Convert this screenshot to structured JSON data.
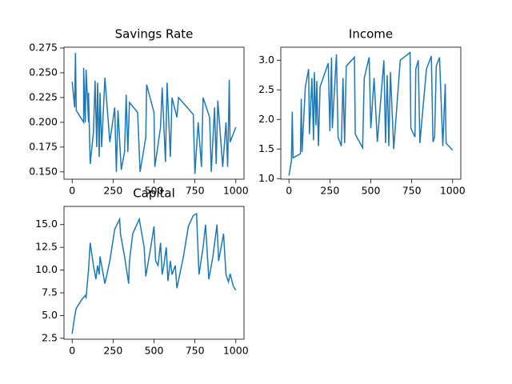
{
  "chart_data": [
    {
      "type": "line",
      "title": "Savings Rate",
      "color": "#1f77b4",
      "x": [
        0,
        15,
        20,
        25,
        70,
        70,
        80,
        85,
        100,
        100,
        110,
        130,
        140,
        150,
        155,
        165,
        170,
        180,
        190,
        200,
        230,
        260,
        270,
        280,
        300,
        320,
        330,
        340,
        350,
        400,
        415,
        450,
        455,
        500,
        505,
        540,
        550,
        570,
        580,
        600,
        610,
        640,
        650,
        740,
        750,
        770,
        790,
        800,
        840,
        850,
        870,
        880,
        890,
        920,
        940,
        950,
        960,
        965,
        1000
      ],
      "values": [
        0.241,
        0.215,
        0.27,
        0.212,
        0.2,
        0.255,
        0.2,
        0.253,
        0.2,
        0.23,
        0.158,
        0.19,
        0.242,
        0.175,
        0.24,
        0.165,
        0.23,
        0.175,
        0.21,
        0.245,
        0.18,
        0.215,
        0.15,
        0.212,
        0.152,
        0.17,
        0.228,
        0.17,
        0.22,
        0.21,
        0.15,
        0.185,
        0.238,
        0.21,
        0.155,
        0.195,
        0.235,
        0.16,
        0.24,
        0.165,
        0.225,
        0.205,
        0.225,
        0.208,
        0.148,
        0.2,
        0.155,
        0.225,
        0.205,
        0.15,
        0.215,
        0.158,
        0.222,
        0.155,
        0.2,
        0.155,
        0.243,
        0.18,
        0.195
      ],
      "xlim": [
        -50,
        1050
      ],
      "ylim": [
        0.1426,
        0.2758
      ],
      "xticks": [
        0,
        250,
        500,
        750,
        1000
      ],
      "yticks": [
        {
          "value": 0.15,
          "label": "0.150"
        },
        {
          "value": 0.175,
          "label": "0.175"
        },
        {
          "value": 0.2,
          "label": "0.200"
        },
        {
          "value": 0.225,
          "label": "0.225"
        },
        {
          "value": 0.25,
          "label": "0.250"
        },
        {
          "value": 0.275,
          "label": "0.275"
        }
      ]
    },
    {
      "type": "line",
      "title": "Income",
      "color": "#1f77b4",
      "x": [
        0,
        15,
        20,
        25,
        70,
        75,
        80,
        100,
        120,
        125,
        140,
        150,
        155,
        165,
        170,
        180,
        190,
        240,
        250,
        260,
        265,
        290,
        300,
        320,
        330,
        340,
        350,
        400,
        405,
        450,
        460,
        490,
        500,
        520,
        540,
        580,
        590,
        600,
        610,
        620,
        640,
        680,
        740,
        745,
        770,
        775,
        790,
        800,
        840,
        870,
        880,
        890,
        900,
        920,
        940,
        955,
        960,
        1000
      ],
      "values": [
        1.05,
        1.3,
        2.13,
        1.35,
        1.42,
        2.35,
        1.45,
        2.55,
        2.85,
        1.75,
        2.7,
        1.65,
        2.8,
        1.9,
        2.65,
        1.55,
        2.55,
        2.95,
        1.8,
        3.05,
        1.85,
        3.1,
        1.7,
        1.55,
        2.7,
        1.6,
        2.9,
        3.05,
        1.75,
        1.52,
        2.7,
        3.05,
        1.85,
        2.7,
        1.62,
        3.0,
        1.6,
        2.75,
        1.55,
        2.8,
        1.5,
        3.0,
        3.13,
        1.85,
        1.7,
        2.85,
        3.0,
        1.6,
        2.85,
        3.07,
        1.62,
        1.7,
        2.9,
        3.05,
        1.55,
        2.6,
        1.6,
        1.48
      ],
      "xlim": [
        -50,
        1050
      ],
      "ylim": [
        0.99,
        3.22
      ],
      "xticks": [
        0,
        250,
        500,
        750,
        1000
      ],
      "yticks": [
        {
          "value": 1,
          "label": "1.0"
        },
        1.5,
        {
          "value": 2,
          "label": "2.0"
        },
        2.5,
        {
          "value": 3,
          "label": "3.0"
        }
      ]
    },
    {
      "type": "line",
      "title": "Capital",
      "color": "#1f77b4",
      "x": [
        0,
        15,
        25,
        60,
        80,
        85,
        100,
        110,
        130,
        145,
        155,
        165,
        170,
        185,
        200,
        230,
        260,
        290,
        295,
        320,
        345,
        350,
        370,
        410,
        440,
        450,
        480,
        500,
        510,
        525,
        540,
        550,
        560,
        575,
        585,
        600,
        610,
        630,
        640,
        680,
        710,
        740,
        760,
        775,
        800,
        815,
        835,
        860,
        885,
        895,
        905,
        925,
        940,
        955,
        965,
        985,
        1000
      ],
      "values": [
        3.0,
        4.9,
        5.8,
        6.8,
        7.2,
        7.0,
        10.0,
        13.0,
        10.5,
        9.0,
        10.5,
        9.5,
        11.5,
        10.0,
        8.5,
        11.0,
        14.5,
        15.6,
        14.0,
        11.5,
        8.5,
        11.0,
        14.0,
        15.6,
        12.5,
        9.3,
        12.5,
        14.8,
        11.0,
        10.5,
        13.0,
        9.5,
        10.5,
        12.5,
        8.8,
        11.0,
        9.5,
        10.5,
        8.0,
        11.5,
        14.8,
        16.0,
        16.2,
        9.5,
        12.5,
        15.0,
        9.0,
        11.5,
        15.0,
        11.0,
        12.0,
        14.0,
        9.5,
        8.7,
        9.6,
        8.2,
        7.8
      ],
      "xlim": [
        -50,
        1050
      ],
      "ylim": [
        2.4,
        17.0
      ],
      "xticks": [
        0,
        250,
        500,
        750,
        1000
      ],
      "yticks": [
        2.5,
        {
          "value": 5,
          "label": "5.0"
        },
        7.5,
        {
          "value": 10,
          "label": "10.0"
        },
        12.5,
        {
          "value": 15,
          "label": "15.0"
        }
      ]
    }
  ]
}
